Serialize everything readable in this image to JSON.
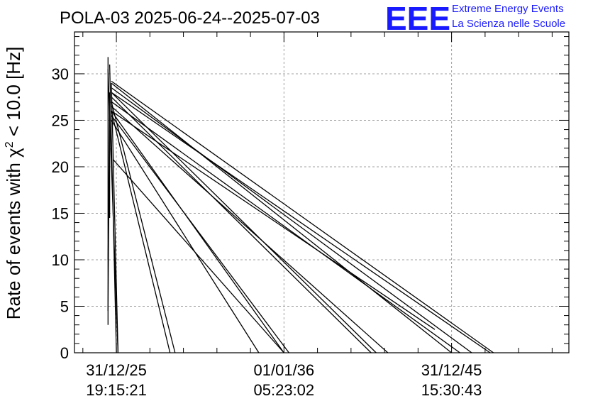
{
  "chart_data": {
    "type": "line",
    "title": "POLA-03 2025-06-24--2025-07-03",
    "ylabel_prefix": "Rate of events with ",
    "ylabel_chi": "χ",
    "ylabel_sup": "2",
    "ylabel_suffix": " < 10.0 [Hz]",
    "xlabel": "",
    "ylim": [
      0,
      34.5
    ],
    "yticks": [
      0,
      5,
      10,
      15,
      20,
      25,
      30
    ],
    "xlim": [
      -2.5,
      27
    ],
    "x_unit": "years from 31/12/25 19:15:21",
    "xticks": [
      {
        "value": 0,
        "line1": "31/12/25",
        "line2": "19:15:21"
      },
      {
        "value": 10,
        "line1": "01/01/36",
        "line2": "05:23:02"
      },
      {
        "value": 20,
        "line1": "31/12/45",
        "line2": "15:30:43"
      }
    ],
    "grid": true,
    "series": [
      {
        "values": [
          [
            -0.5,
            31.8
          ],
          [
            -0.5,
            3.0
          ]
        ]
      },
      {
        "values": [
          [
            -0.5,
            30.5
          ],
          [
            0.1,
            0
          ]
        ]
      },
      {
        "values": [
          [
            -0.4,
            31.0
          ],
          [
            0.0,
            0
          ]
        ]
      },
      {
        "values": [
          [
            -0.4,
            28.0
          ],
          [
            -0.5,
            4.5
          ]
        ]
      },
      {
        "values": [
          [
            -0.4,
            24.0
          ],
          [
            -0.4,
            14.5
          ]
        ]
      },
      {
        "values": [
          [
            -0.4,
            22.0
          ],
          [
            -0.5,
            10.0
          ]
        ]
      },
      {
        "values": [
          [
            -0.3,
            29.0
          ],
          [
            0.1,
            0
          ]
        ]
      },
      {
        "values": [
          [
            -0.3,
            27.0
          ],
          [
            3.5,
            0
          ]
        ]
      },
      {
        "values": [
          [
            -0.3,
            26.0
          ],
          [
            3.2,
            0
          ]
        ]
      },
      {
        "values": [
          [
            -0.3,
            25.0
          ],
          [
            8.5,
            0
          ]
        ]
      },
      {
        "values": [
          [
            -0.2,
            20.8
          ],
          [
            10.0,
            0
          ]
        ]
      },
      {
        "values": [
          [
            -0.3,
            26.0
          ],
          [
            10.0,
            0
          ]
        ]
      },
      {
        "values": [
          [
            -0.3,
            25.5
          ],
          [
            10.3,
            0
          ]
        ]
      },
      {
        "values": [
          [
            -0.3,
            27.5
          ],
          [
            15.2,
            0
          ]
        ]
      },
      {
        "values": [
          [
            -0.3,
            28.0
          ],
          [
            15.5,
            0
          ]
        ]
      },
      {
        "values": [
          [
            -0.3,
            26.5
          ],
          [
            16.2,
            0
          ]
        ]
      },
      {
        "values": [
          [
            -0.3,
            29.0
          ],
          [
            20.0,
            0
          ]
        ]
      },
      {
        "values": [
          [
            -0.3,
            28.5
          ],
          [
            21.2,
            0
          ]
        ]
      },
      {
        "values": [
          [
            -0.3,
            27.0
          ],
          [
            20.5,
            0
          ]
        ]
      },
      {
        "values": [
          [
            -0.3,
            26.0
          ],
          [
            19.0,
            2.5
          ]
        ]
      },
      {
        "values": [
          [
            -0.3,
            29.2
          ],
          [
            22.5,
            0
          ]
        ]
      },
      {
        "values": [
          [
            -0.3,
            28.0
          ],
          [
            22.3,
            0
          ]
        ]
      }
    ]
  },
  "logo": {
    "mark": "EEE",
    "line1": "Extreme Energy Events",
    "line2": "La Scienza nelle Scuole"
  }
}
